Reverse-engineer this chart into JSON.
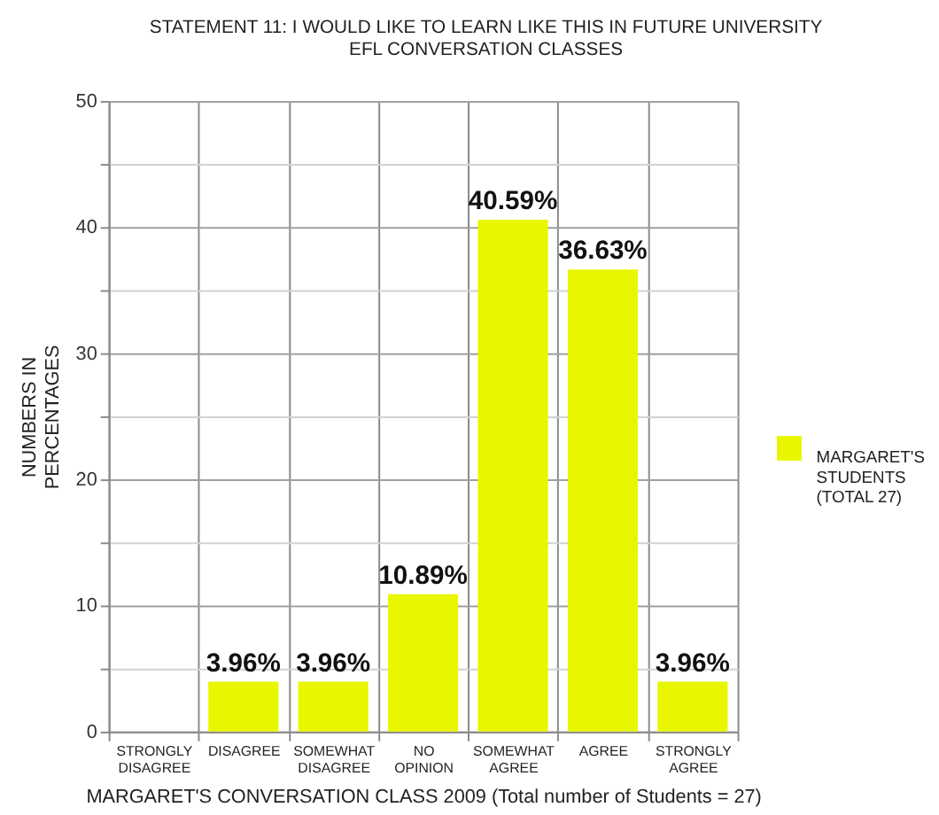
{
  "chart_data": {
    "type": "bar",
    "title": "STATEMENT 11: I WOULD LIKE TO LEARN LIKE THIS IN FUTURE UNIVERSITY EFL CONVERSATION CLASSES",
    "xlabel": "MARGARET'S CONVERSATION CLASS 2009 (Total number of Students = 27)",
    "ylabel": "NUMBERS IN PERCENTAGES",
    "categories": [
      "STRONGLY DISAGREE",
      "DISAGREE",
      "SOMEWHAT DISAGREE",
      "NO OPINION",
      "SOMEWHAT AGREE",
      "AGREE",
      "STRONGLY AGREE"
    ],
    "series": [
      {
        "name": "MARGARET'S STUDENTS (TOTAL 27)",
        "color": "#e8f700",
        "values": [
          0,
          3.96,
          3.96,
          10.89,
          40.59,
          36.63,
          3.96
        ],
        "value_labels": [
          null,
          "3.96%",
          "3.96%",
          "10.89%",
          "40.59%",
          "36.63%",
          "3.96%"
        ]
      }
    ],
    "ylim": [
      0,
      50
    ],
    "yticks": [
      0,
      {
        "value": 5,
        "label": null
      },
      10,
      {
        "value": 15,
        "label": null
      },
      20,
      {
        "value": 25,
        "label": null
      },
      30,
      {
        "value": 35,
        "label": null
      },
      40,
      {
        "value": 45,
        "label": null
      },
      50
    ],
    "grid": true,
    "legend": "right"
  }
}
